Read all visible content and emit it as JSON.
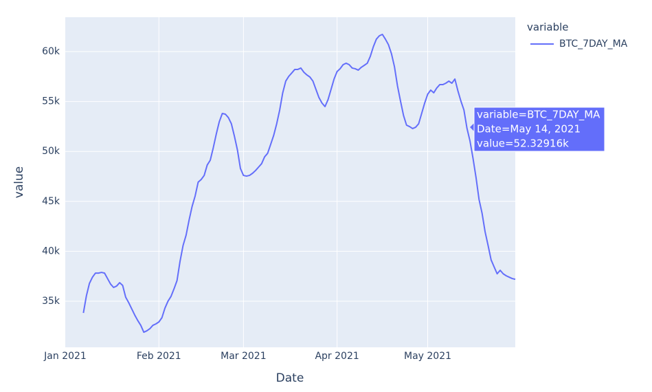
{
  "chart_data": {
    "type": "line",
    "x_label": "Date",
    "y_label": "value",
    "legend_title": "variable",
    "x": [
      "2021-01-07",
      "2021-01-08",
      "2021-01-09",
      "2021-01-10",
      "2021-01-11",
      "2021-01-12",
      "2021-01-13",
      "2021-01-14",
      "2021-01-15",
      "2021-01-16",
      "2021-01-17",
      "2021-01-18",
      "2021-01-19",
      "2021-01-20",
      "2021-01-21",
      "2021-01-22",
      "2021-01-23",
      "2021-01-24",
      "2021-01-25",
      "2021-01-26",
      "2021-01-27",
      "2021-01-28",
      "2021-01-29",
      "2021-01-30",
      "2021-01-31",
      "2021-02-01",
      "2021-02-02",
      "2021-02-03",
      "2021-02-04",
      "2021-02-05",
      "2021-02-06",
      "2021-02-07",
      "2021-02-08",
      "2021-02-09",
      "2021-02-10",
      "2021-02-11",
      "2021-02-12",
      "2021-02-13",
      "2021-02-14",
      "2021-02-15",
      "2021-02-16",
      "2021-02-17",
      "2021-02-18",
      "2021-02-19",
      "2021-02-20",
      "2021-02-21",
      "2021-02-22",
      "2021-02-23",
      "2021-02-24",
      "2021-02-25",
      "2021-02-26",
      "2021-02-27",
      "2021-02-28",
      "2021-03-01",
      "2021-03-02",
      "2021-03-03",
      "2021-03-04",
      "2021-03-05",
      "2021-03-06",
      "2021-03-07",
      "2021-03-08",
      "2021-03-09",
      "2021-03-10",
      "2021-03-11",
      "2021-03-12",
      "2021-03-13",
      "2021-03-14",
      "2021-03-15",
      "2021-03-16",
      "2021-03-17",
      "2021-03-18",
      "2021-03-19",
      "2021-03-20",
      "2021-03-21",
      "2021-03-22",
      "2021-03-23",
      "2021-03-24",
      "2021-03-25",
      "2021-03-26",
      "2021-03-27",
      "2021-03-28",
      "2021-03-29",
      "2021-03-30",
      "2021-03-31",
      "2021-04-01",
      "2021-04-02",
      "2021-04-03",
      "2021-04-04",
      "2021-04-05",
      "2021-04-06",
      "2021-04-07",
      "2021-04-08",
      "2021-04-09",
      "2021-04-10",
      "2021-04-11",
      "2021-04-12",
      "2021-04-13",
      "2021-04-14",
      "2021-04-15",
      "2021-04-16",
      "2021-04-17",
      "2021-04-18",
      "2021-04-19",
      "2021-04-20",
      "2021-04-21",
      "2021-04-22",
      "2021-04-23",
      "2021-04-24",
      "2021-04-25",
      "2021-04-26",
      "2021-04-27",
      "2021-04-28",
      "2021-04-29",
      "2021-04-30",
      "2021-05-01",
      "2021-05-02",
      "2021-05-03",
      "2021-05-04",
      "2021-05-05",
      "2021-05-06",
      "2021-05-07",
      "2021-05-08",
      "2021-05-09",
      "2021-05-10",
      "2021-05-11",
      "2021-05-12",
      "2021-05-13",
      "2021-05-14",
      "2021-05-15",
      "2021-05-16",
      "2021-05-17",
      "2021-05-18",
      "2021-05-19",
      "2021-05-20",
      "2021-05-21",
      "2021-05-22",
      "2021-05-23",
      "2021-05-24",
      "2021-05-25",
      "2021-05-26",
      "2021-05-27",
      "2021-05-28",
      "2021-05-29",
      "2021-05-30"
    ],
    "series": [
      {
        "name": "BTC_7DAY_MA",
        "color": "#636efa",
        "values": [
          33830,
          35550,
          36790,
          37410,
          37820,
          37820,
          37890,
          37820,
          37270,
          36720,
          36380,
          36520,
          36860,
          36590,
          35410,
          34860,
          34240,
          33620,
          33070,
          32590,
          31900,
          32040,
          32250,
          32590,
          32730,
          32930,
          33350,
          34310,
          35000,
          35480,
          36240,
          37070,
          39000,
          40580,
          41610,
          43130,
          44500,
          45540,
          46920,
          47190,
          47600,
          48640,
          49120,
          50360,
          51740,
          52980,
          53800,
          53730,
          53390,
          52770,
          51530,
          50150,
          48290,
          47600,
          47530,
          47600,
          47810,
          48090,
          48430,
          48770,
          49460,
          49810,
          50700,
          51600,
          52770,
          54150,
          55870,
          57040,
          57520,
          57860,
          58210,
          58210,
          58350,
          57930,
          57660,
          57450,
          57040,
          56210,
          55390,
          54840,
          54490,
          55180,
          56210,
          57250,
          58000,
          58280,
          58690,
          58830,
          58690,
          58350,
          58280,
          58140,
          58420,
          58620,
          58830,
          59520,
          60480,
          61240,
          61580,
          61720,
          61240,
          60690,
          59790,
          58480,
          56560,
          55040,
          53600,
          52630,
          52490,
          52290,
          52420,
          52770,
          53800,
          54840,
          55730,
          56140,
          55870,
          56350,
          56690,
          56690,
          56830,
          57040,
          56830,
          57250,
          56070,
          55040,
          54150,
          52329.16,
          51050,
          49320,
          47400,
          45190,
          43820,
          41960,
          40580,
          39140,
          38440,
          37750,
          38100,
          37750,
          37550,
          37410,
          37270,
          37200
        ]
      }
    ],
    "xlim": [
      "2021-01-01",
      "2021-05-30"
    ],
    "xticks": [
      {
        "value": "2021-01-01",
        "label": "Jan 2021"
      },
      {
        "value": "2021-02-01",
        "label": "Feb 2021"
      },
      {
        "value": "2021-03-01",
        "label": "Mar 2021"
      },
      {
        "value": "2021-04-01",
        "label": "Apr 2021"
      },
      {
        "value": "2021-05-01",
        "label": "May 2021"
      }
    ],
    "ylim": [
      30390,
      63440
    ],
    "yticks": [
      {
        "value": 35000,
        "label": "35k"
      },
      {
        "value": 40000,
        "label": "40k"
      },
      {
        "value": 45000,
        "label": "45k"
      },
      {
        "value": 50000,
        "label": "50k"
      },
      {
        "value": 55000,
        "label": "55k"
      },
      {
        "value": 60000,
        "label": "60k"
      }
    ],
    "grid": true,
    "tooltip": [
      "variable=BTC_7DAY_MA",
      "Date=May 14, 2021",
      "value=52.32916k"
    ]
  }
}
